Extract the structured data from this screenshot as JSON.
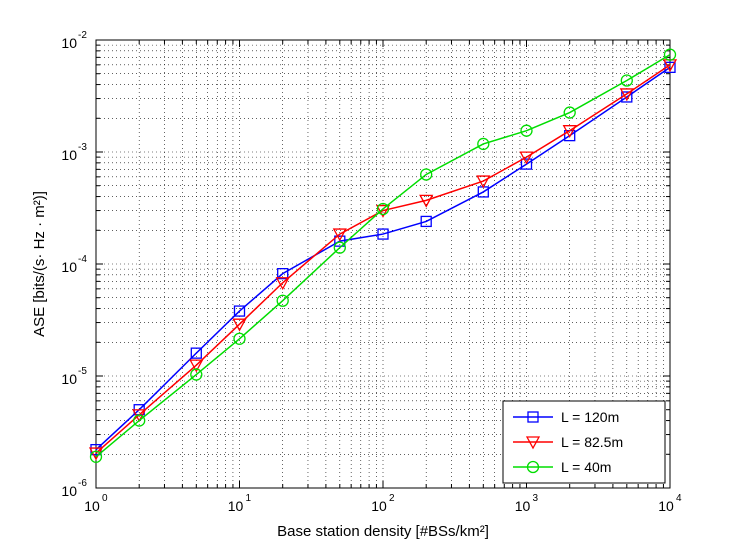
{
  "chart_data": {
    "type": "line",
    "xlabel": "Base station density [#BSs/km²]",
    "ylabel": "ASE [bits/(s· Hz · m²)]",
    "xscale": "log",
    "yscale": "log",
    "xlim": [
      1,
      10000
    ],
    "ylim": [
      1e-06,
      0.01
    ],
    "x_tick_labels": [
      "10⁰",
      "10¹",
      "10²",
      "10³",
      "10⁴"
    ],
    "y_tick_labels": [
      "10⁻⁶",
      "10⁻⁵",
      "10⁻⁴",
      "10⁻³",
      "10⁻²"
    ],
    "grid": true,
    "legend_position": "bottom-right",
    "x": [
      1,
      2,
      5,
      10,
      20,
      50,
      100,
      200,
      500,
      1000,
      2000,
      5000,
      10000
    ],
    "series": [
      {
        "name": "L = 120m",
        "color": "#0000ff",
        "marker": "square",
        "values": [
          2.2e-06,
          5e-06,
          1.6e-05,
          3.8e-05,
          8.2e-05,
          0.00016,
          0.000185,
          0.00024,
          0.00044,
          0.00078,
          0.0014,
          0.0031,
          0.0057
        ]
      },
      {
        "name": "L = 82.5m",
        "color": "#ff0000",
        "marker": "triangle-down",
        "values": [
          2.05e-06,
          4.5e-06,
          1.25e-05,
          2.9e-05,
          6.8e-05,
          0.000185,
          0.0003,
          0.00037,
          0.00055,
          0.0009,
          0.00155,
          0.0033,
          0.006
        ]
      },
      {
        "name": "L = 40m",
        "color": "#00dd00",
        "marker": "circle",
        "values": [
          1.9e-06,
          4e-06,
          1.03e-05,
          2.15e-05,
          4.7e-05,
          0.00014,
          0.00031,
          0.00063,
          0.00118,
          0.00155,
          0.00225,
          0.00435,
          0.0074
        ]
      }
    ]
  }
}
